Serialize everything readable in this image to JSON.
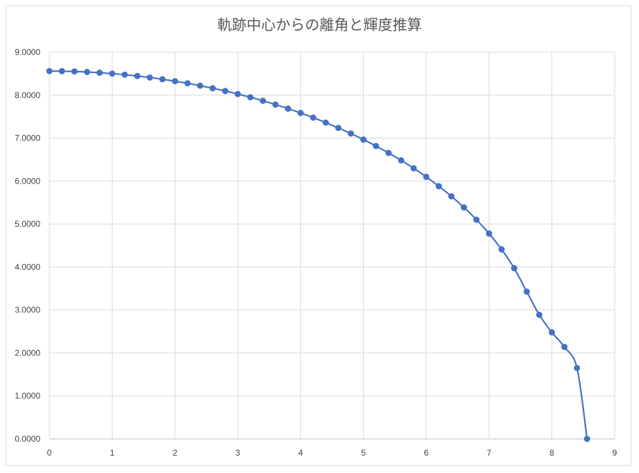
{
  "chart_data": {
    "type": "scatter-line",
    "title": "軌跡中心からの離角と輝度推算",
    "xlabel": "",
    "ylabel": "",
    "xlim": [
      0,
      9
    ],
    "ylim": [
      0,
      9
    ],
    "x_ticks": [
      "0",
      "1",
      "2",
      "3",
      "4",
      "5",
      "6",
      "7",
      "8",
      "9"
    ],
    "y_ticks": [
      "0.0000",
      "1.0000",
      "2.0000",
      "3.0000",
      "4.0000",
      "5.0000",
      "6.0000",
      "7.0000",
      "8.0000",
      "9.0000"
    ],
    "grid": true,
    "legend": "none",
    "line_color": "#4472c4",
    "marker_color": "#4472c4",
    "series": [
      {
        "x": [
          0,
          0.2,
          0.4,
          0.6,
          0.8,
          1.0,
          1.2,
          1.4,
          1.6,
          1.8,
          2.0,
          2.2,
          2.4,
          2.6,
          2.8,
          3.0,
          3.2,
          3.4,
          3.6,
          3.8,
          4.0,
          4.2,
          4.4,
          4.6,
          4.8,
          5.0,
          5.2,
          5.4,
          5.6,
          5.8,
          6.0,
          6.2,
          6.4,
          6.6,
          6.8,
          7.0,
          7.2,
          7.4,
          7.6,
          7.8,
          8.0,
          8.2,
          8.4,
          8.56
        ],
        "y": [
          8.56,
          8.558,
          8.551,
          8.539,
          8.522,
          8.501,
          8.476,
          8.445,
          8.41,
          8.37,
          8.325,
          8.276,
          8.221,
          8.161,
          8.096,
          8.026,
          7.95,
          7.868,
          7.78,
          7.686,
          7.585,
          7.477,
          7.361,
          7.238,
          7.107,
          6.966,
          6.816,
          6.655,
          6.483,
          6.298,
          6.098,
          5.881,
          5.646,
          5.387,
          5.101,
          4.779,
          4.41,
          3.973,
          3.427,
          2.888,
          2.48,
          2.14,
          1.65,
          0
        ]
      }
    ]
  }
}
